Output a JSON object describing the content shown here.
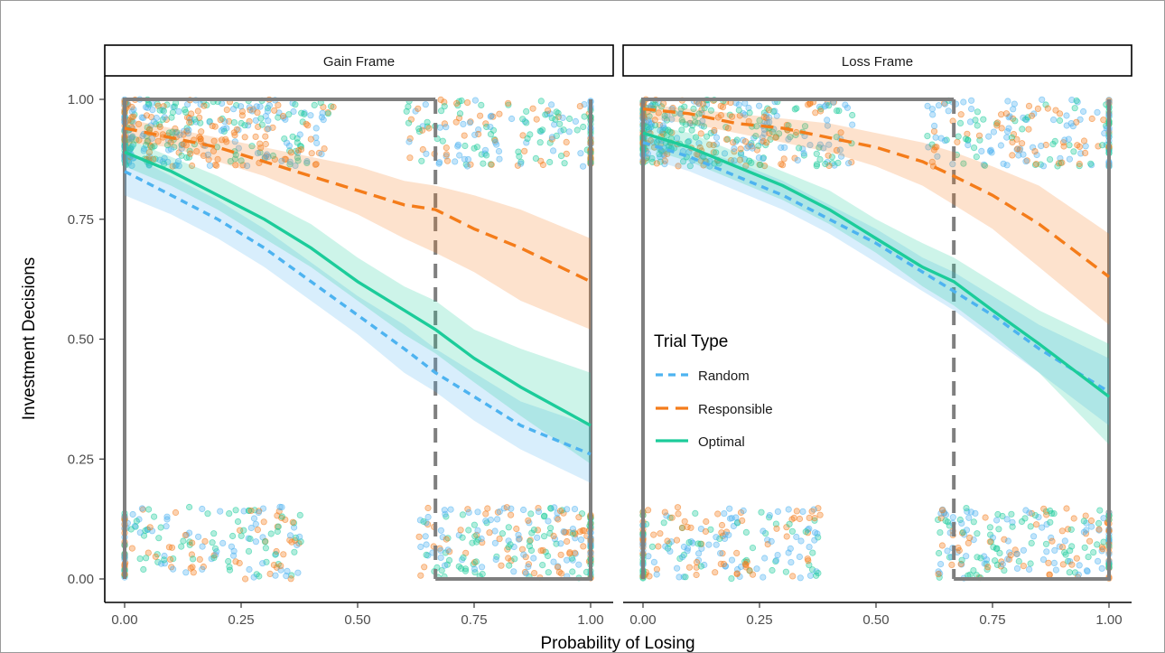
{
  "chart_data": {
    "type": "line",
    "facets": [
      "Gain Frame",
      "Loss Frame"
    ],
    "xlabel": "Probability of Losing",
    "ylabel": "Investment Decisions",
    "xlim": [
      0,
      1
    ],
    "ylim": [
      0,
      1
    ],
    "x_ticks": [
      "0.00",
      "0.25",
      "0.50",
      "0.75",
      "1.00"
    ],
    "y_ticks": [
      "0.00",
      "0.25",
      "0.50",
      "0.75",
      "1.00"
    ],
    "threshold_x": 0.667,
    "legend": {
      "title": "Trial Type",
      "position": "inside-right-panel",
      "items": [
        {
          "label": "Random",
          "color": "#4db3f0",
          "linestyle": "short-dash"
        },
        {
          "label": "Responsible",
          "color": "#f47c1a",
          "linestyle": "dash"
        },
        {
          "label": "Optimal",
          "color": "#1ccc9a",
          "linestyle": "solid"
        }
      ]
    },
    "x": [
      0,
      0.1,
      0.2,
      0.3,
      0.4,
      0.5,
      0.6,
      0.667,
      0.75,
      0.85,
      1.0
    ],
    "panels": [
      {
        "name": "Gain Frame",
        "series": [
          {
            "name": "Random",
            "values": [
              0.85,
              0.8,
              0.75,
              0.69,
              0.62,
              0.55,
              0.48,
              0.43,
              0.38,
              0.32,
              0.26
            ],
            "lower": [
              0.8,
              0.76,
              0.71,
              0.65,
              0.58,
              0.51,
              0.43,
              0.39,
              0.33,
              0.27,
              0.2
            ],
            "upper": [
              0.89,
              0.84,
              0.79,
              0.73,
              0.66,
              0.59,
              0.53,
              0.48,
              0.43,
              0.37,
              0.32
            ]
          },
          {
            "name": "Responsible",
            "values": [
              0.94,
              0.92,
              0.9,
              0.87,
              0.84,
              0.81,
              0.78,
              0.77,
              0.73,
              0.69,
              0.62
            ],
            "lower": [
              0.91,
              0.9,
              0.87,
              0.84,
              0.8,
              0.76,
              0.71,
              0.68,
              0.64,
              0.58,
              0.52
            ],
            "upper": [
              0.96,
              0.94,
              0.92,
              0.9,
              0.88,
              0.86,
              0.83,
              0.82,
              0.8,
              0.77,
              0.71
            ]
          },
          {
            "name": "Optimal",
            "values": [
              0.89,
              0.85,
              0.8,
              0.75,
              0.69,
              0.62,
              0.56,
              0.52,
              0.46,
              0.4,
              0.32
            ],
            "lower": [
              0.86,
              0.82,
              0.77,
              0.71,
              0.65,
              0.58,
              0.51,
              0.47,
              0.41,
              0.34,
              0.24
            ],
            "upper": [
              0.92,
              0.88,
              0.84,
              0.79,
              0.74,
              0.67,
              0.61,
              0.58,
              0.52,
              0.48,
              0.43
            ]
          }
        ]
      },
      {
        "name": "Loss Frame",
        "series": [
          {
            "name": "Random",
            "values": [
              0.91,
              0.88,
              0.84,
              0.8,
              0.75,
              0.7,
              0.64,
              0.6,
              0.55,
              0.48,
              0.39
            ],
            "lower": [
              0.88,
              0.85,
              0.81,
              0.77,
              0.72,
              0.66,
              0.6,
              0.56,
              0.5,
              0.43,
              0.32
            ],
            "upper": [
              0.93,
              0.9,
              0.87,
              0.83,
              0.78,
              0.73,
              0.67,
              0.64,
              0.59,
              0.53,
              0.46
            ]
          },
          {
            "name": "Responsible",
            "values": [
              0.98,
              0.97,
              0.95,
              0.94,
              0.92,
              0.9,
              0.87,
              0.84,
              0.8,
              0.74,
              0.63
            ],
            "lower": [
              0.96,
              0.95,
              0.93,
              0.91,
              0.89,
              0.86,
              0.82,
              0.78,
              0.73,
              0.65,
              0.53
            ],
            "upper": [
              0.99,
              0.98,
              0.97,
              0.96,
              0.95,
              0.93,
              0.91,
              0.89,
              0.86,
              0.82,
              0.72
            ]
          },
          {
            "name": "Optimal",
            "values": [
              0.93,
              0.9,
              0.86,
              0.82,
              0.77,
              0.71,
              0.65,
              0.62,
              0.56,
              0.49,
              0.38
            ],
            "lower": [
              0.9,
              0.87,
              0.83,
              0.79,
              0.74,
              0.68,
              0.61,
              0.57,
              0.51,
              0.43,
              0.28
            ],
            "upper": [
              0.95,
              0.93,
              0.89,
              0.85,
              0.81,
              0.75,
              0.7,
              0.67,
              0.62,
              0.56,
              0.49
            ]
          }
        ]
      }
    ]
  }
}
